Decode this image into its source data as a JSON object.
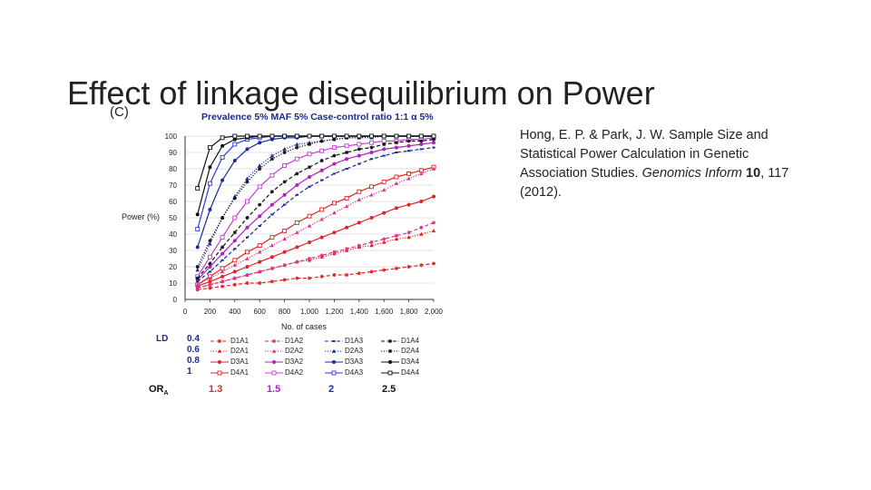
{
  "slide": {
    "title": "Effect of linkage disequilibrium on Power",
    "citation": {
      "authors": "Hong, E. P. & Park, J. W. Sample Size and Statistical Power Calculation in Genetic Association Studies.",
      "journal": "Genomics Inform",
      "volume": "10",
      "rest": ", 117 (2012)."
    }
  },
  "chart_data": {
    "type": "line",
    "panel_label": "(C)",
    "title": "Prevalence 5%  MAF 5%  Case-control ratio 1:1   α 5%",
    "xlabel": "No. of cases",
    "ylabel": "Power (%)",
    "xlim": [
      0,
      2000
    ],
    "ylim": [
      0,
      100
    ],
    "x_ticks": [
      "0",
      "200",
      "400",
      "600",
      "800",
      "1,000",
      "1,200",
      "1,400",
      "1,600",
      "1,800",
      "2,000"
    ],
    "y_ticks": [
      "0",
      "10",
      "20",
      "30",
      "40",
      "50",
      "60",
      "70",
      "80",
      "90",
      "100"
    ],
    "grid": "horizontal",
    "x": [
      100,
      200,
      300,
      400,
      500,
      600,
      700,
      800,
      900,
      1000,
      1100,
      1200,
      1300,
      1400,
      1500,
      1600,
      1700,
      1800,
      1900,
      2000
    ],
    "legend_labels": {
      "ld_title": "LD",
      "ld_values": [
        "0.4",
        "0.6",
        "0.8",
        "1"
      ],
      "or_title": "OR",
      "or_subscript": "A",
      "or_values": [
        "1.3",
        "1.5",
        "2",
        "2.5"
      ]
    },
    "series": [
      {
        "name": "D1A1",
        "ld_row": 0,
        "or_col": 0,
        "color": "#e02424",
        "dash": "dash",
        "marker": "star",
        "values": [
          6,
          7,
          8,
          9,
          10,
          10,
          11,
          12,
          13,
          13,
          14,
          15,
          15,
          16,
          17,
          18,
          19,
          20,
          21,
          22
        ]
      },
      {
        "name": "D2A1",
        "ld_row": 1,
        "or_col": 0,
        "color": "#e02424",
        "dash": "dot",
        "marker": "triangle",
        "values": [
          7,
          9,
          11,
          13,
          15,
          17,
          19,
          21,
          23,
          24,
          26,
          28,
          30,
          32,
          33,
          35,
          37,
          38,
          40,
          42
        ]
      },
      {
        "name": "D3A1",
        "ld_row": 2,
        "or_col": 0,
        "color": "#e02424",
        "dash": "solid",
        "marker": "circle",
        "values": [
          8,
          11,
          14,
          17,
          20,
          23,
          26,
          29,
          32,
          35,
          38,
          41,
          44,
          47,
          50,
          53,
          56,
          58,
          60,
          63
        ]
      },
      {
        "name": "D4A1",
        "ld_row": 3,
        "or_col": 0,
        "color": "#e02424",
        "dash": "solid",
        "marker": "square",
        "values": [
          9,
          14,
          19,
          24,
          29,
          33,
          38,
          42,
          47,
          51,
          55,
          59,
          62,
          66,
          69,
          72,
          75,
          77,
          79,
          81
        ]
      },
      {
        "name": "D1A2",
        "ld_row": 0,
        "or_col": 1,
        "color": "#e0308a",
        "dash": "dash",
        "marker": "star",
        "values": [
          7,
          9,
          11,
          13,
          15,
          17,
          19,
          21,
          23,
          25,
          27,
          29,
          31,
          33,
          35,
          37,
          39,
          41,
          44,
          47
        ]
      },
      {
        "name": "D2A2",
        "ld_row": 1,
        "or_col": 1,
        "color": "#e0308a",
        "dash": "dot",
        "marker": "triangle",
        "values": [
          9,
          13,
          17,
          21,
          25,
          29,
          33,
          37,
          41,
          45,
          49,
          53,
          57,
          61,
          64,
          67,
          71,
          74,
          77,
          80
        ]
      },
      {
        "name": "D3A2",
        "ld_row": 2,
        "or_col": 1,
        "color": "#b020c0",
        "dash": "solid",
        "marker": "circle",
        "values": [
          12,
          20,
          28,
          36,
          44,
          51,
          58,
          64,
          70,
          75,
          79,
          83,
          86,
          88,
          90,
          92,
          93,
          94,
          95,
          96
        ]
      },
      {
        "name": "D4A2",
        "ld_row": 3,
        "or_col": 1,
        "color": "#c040d0",
        "dash": "solid",
        "marker": "square",
        "values": [
          14,
          26,
          38,
          50,
          60,
          69,
          76,
          82,
          86,
          89,
          91,
          93,
          94,
          95,
          96,
          97,
          97,
          98,
          98,
          99
        ]
      },
      {
        "name": "D1A3",
        "ld_row": 0,
        "or_col": 2,
        "color": "#1a2aa0",
        "dash": "dash",
        "marker": "none",
        "values": [
          11,
          17,
          24,
          31,
          38,
          45,
          52,
          58,
          64,
          69,
          73,
          77,
          80,
          83,
          86,
          88,
          90,
          91,
          92,
          93
        ]
      },
      {
        "name": "D2A3",
        "ld_row": 1,
        "or_col": 2,
        "color": "#1a2aa0",
        "dash": "dot",
        "marker": "triangle",
        "values": [
          18,
          34,
          50,
          63,
          74,
          82,
          88,
          92,
          95,
          96,
          97,
          98,
          99,
          99,
          99,
          100,
          100,
          100,
          100,
          100
        ]
      },
      {
        "name": "D3A3",
        "ld_row": 2,
        "or_col": 2,
        "color": "#1a2aa0",
        "dash": "solid",
        "marker": "circle",
        "values": [
          32,
          55,
          73,
          85,
          92,
          96,
          98,
          99,
          99,
          100,
          100,
          100,
          100,
          100,
          100,
          100,
          100,
          100,
          100,
          100
        ]
      },
      {
        "name": "D4A3",
        "ld_row": 3,
        "or_col": 2,
        "color": "#2a3ae0",
        "dash": "solid",
        "marker": "square",
        "values": [
          43,
          71,
          87,
          95,
          98,
          99,
          100,
          100,
          100,
          100,
          100,
          100,
          100,
          100,
          100,
          100,
          100,
          100,
          100,
          100
        ]
      },
      {
        "name": "D2A4",
        "ld_row": 1,
        "or_col": 3,
        "color": "#111111",
        "dash": "dot",
        "marker": "star",
        "values": [
          20,
          36,
          50,
          62,
          72,
          80,
          86,
          90,
          93,
          95,
          97,
          98,
          99,
          99,
          100,
          100,
          100,
          100,
          100,
          100
        ]
      },
      {
        "name": "D3A4",
        "ld_row": 2,
        "or_col": 3,
        "color": "#111111",
        "dash": "solid",
        "marker": "circle",
        "values": [
          52,
          81,
          94,
          98,
          99,
          100,
          100,
          100,
          100,
          100,
          100,
          100,
          100,
          100,
          100,
          100,
          100,
          100,
          100,
          100
        ]
      },
      {
        "name": "D4A4",
        "ld_row": 3,
        "or_col": 3,
        "color": "#111111",
        "dash": "solid",
        "marker": "square",
        "values": [
          68,
          93,
          99,
          100,
          100,
          100,
          100,
          100,
          100,
          100,
          100,
          100,
          100,
          100,
          100,
          100,
          100,
          100,
          100,
          100
        ]
      },
      {
        "name": "D1A4",
        "ld_row": 0,
        "or_col": 3,
        "color": "#111111",
        "dash": "dash",
        "marker": "star",
        "values": [
          13,
          22,
          32,
          41,
          50,
          58,
          66,
          72,
          77,
          81,
          85,
          88,
          90,
          92,
          93,
          95,
          96,
          97,
          97,
          98
        ]
      }
    ],
    "or_colors": [
      "#e02424",
      "#b020c0",
      "#1a2aa0",
      "#111111"
    ]
  }
}
